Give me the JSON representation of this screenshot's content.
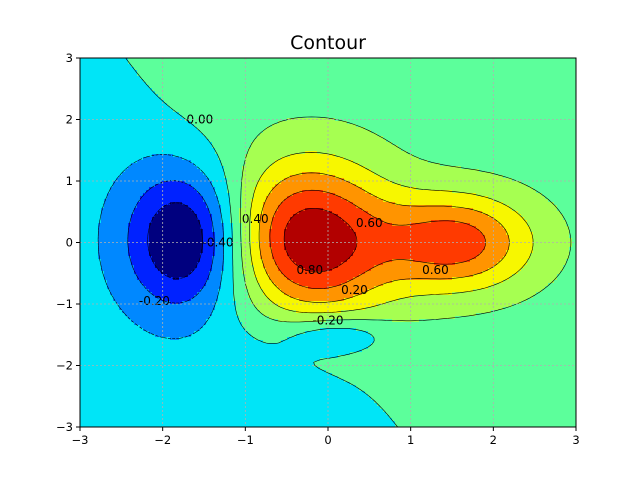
{
  "chart_data": {
    "type": "contour",
    "title": "Contour",
    "xlabel": "",
    "ylabel": "",
    "xlim": [
      -3,
      3
    ],
    "ylim": [
      -3,
      3
    ],
    "xticks": [
      -3,
      -2,
      -1,
      0,
      1,
      2,
      3
    ],
    "yticks": [
      -3,
      -2,
      -1,
      0,
      1,
      2,
      3
    ],
    "xtick_labels": [
      "−3",
      "−2",
      "−1",
      "0",
      "1",
      "2",
      "3"
    ],
    "ytick_labels": [
      "−3",
      "−2",
      "−1",
      "0",
      "1",
      "2",
      "3"
    ],
    "grid": true,
    "levels": [
      -0.6,
      -0.4,
      -0.2,
      0.0,
      0.2,
      0.4,
      0.6,
      0.8,
      1.0
    ],
    "level_colors": [
      "#00007f",
      "#0022ff",
      "#0088ff",
      "#00e5f7",
      "#5cff9b",
      "#a6ff51",
      "#f7f700",
      "#ff9400",
      "#ff3a00",
      "#b20000"
    ],
    "components": [
      {
        "kind": "peak",
        "x": -0.25,
        "y": 0.0,
        "amplitude": 1.08,
        "sx": 0.7,
        "sy": 0.9
      },
      {
        "kind": "peak",
        "x": 1.55,
        "y": 0.0,
        "amplitude": 0.78,
        "sx": 0.65,
        "sy": 0.55
      },
      {
        "kind": "trough",
        "x": -1.72,
        "y": 0.05,
        "amplitude": 0.78,
        "sx": 0.5,
        "sy": 0.8
      },
      {
        "kind": "trough",
        "x": 0.1,
        "y": -1.5,
        "amplitude": 0.35,
        "sx": 0.45,
        "sy": 0.22
      }
    ],
    "contour_labels": [
      {
        "text": "0.00",
        "x": -1.55,
        "y": 2.0
      },
      {
        "text": "0.40",
        "x": -0.88,
        "y": 0.38
      },
      {
        "text": "-0.40",
        "x": -1.33,
        "y": 0.0
      },
      {
        "text": "-0.20",
        "x": -2.1,
        "y": -0.95
      },
      {
        "text": "0.80",
        "x": -0.22,
        "y": -0.45
      },
      {
        "text": "0.60",
        "x": 0.5,
        "y": 0.32
      },
      {
        "text": "0.60",
        "x": 1.3,
        "y": -0.45
      },
      {
        "text": "0.20",
        "x": 0.32,
        "y": -0.77
      },
      {
        "text": "-0.20",
        "x": 0.0,
        "y": -1.27
      }
    ]
  }
}
